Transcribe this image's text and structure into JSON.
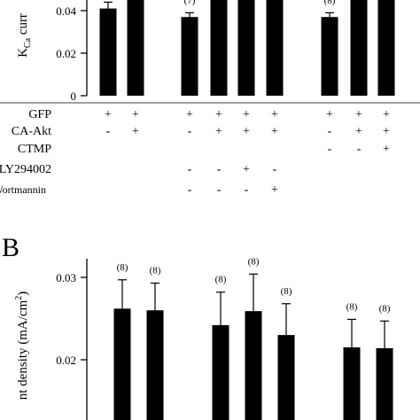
{
  "chart_data": [
    {
      "panel_label": "",
      "type": "bar",
      "ylabel": "K",
      "ylabel_sub": "Ca",
      "ylabel_rest": " curr",
      "ylim": [
        0,
        0.05
      ],
      "yticks": [
        0,
        0.02,
        0.04
      ],
      "ytick_labels": [
        "0",
        "0.02",
        "0.04"
      ],
      "groups": [
        {
          "values": [
            0.041,
            0.05
          ],
          "errors": [
            0.003,
            0.0
          ],
          "n_labels": [
            "",
            ""
          ]
        },
        {
          "values": [
            0.037,
            0.05,
            0.05,
            0.05
          ],
          "errors": [
            0.002,
            0.0,
            0.0,
            0.0
          ],
          "n_labels": [
            "(7)",
            "",
            "",
            ""
          ]
        },
        {
          "values": [
            0.037,
            0.05,
            0.05
          ],
          "errors": [
            0.002,
            0.0,
            0.0
          ],
          "n_labels": [
            "(8)",
            "",
            ""
          ]
        }
      ],
      "conditions": [
        {
          "name": "GFP",
          "marks": [
            [
              "+",
              "+"
            ],
            [
              "+",
              "+",
              "+",
              "+"
            ],
            [
              "+",
              "+",
              "+"
            ]
          ]
        },
        {
          "name": "CA-Akt",
          "marks": [
            [
              "-",
              "+"
            ],
            [
              "-",
              "+",
              "+",
              "+"
            ],
            [
              "-",
              "+",
              "+"
            ]
          ]
        },
        {
          "name": "CTMP",
          "marks": [
            [
              "",
              ""
            ],
            [
              "",
              "",
              "",
              ""
            ],
            [
              "-",
              "-",
              "+"
            ]
          ]
        },
        {
          "name": "LY294002",
          "marks": [
            [
              "",
              ""
            ],
            [
              "-",
              "-",
              "+",
              "-"
            ],
            [
              "",
              "",
              ""
            ]
          ]
        },
        {
          "name": "Wortmannin",
          "marks": [
            [
              "",
              ""
            ],
            [
              "-",
              "-",
              "-",
              "+"
            ],
            [
              "",
              "",
              ""
            ]
          ]
        }
      ]
    },
    {
      "panel_label": "B",
      "type": "bar",
      "ylabel": "nt density (mA/cm",
      "ylabel_sup": "2",
      "ylabel_end": ")",
      "ylim": [
        0.015,
        0.0325
      ],
      "yticks": [
        0.02,
        0.03
      ],
      "ytick_labels": [
        "0.02",
        "0.03"
      ],
      "groups": [
        {
          "values": [
            0.0262,
            0.026
          ],
          "errors": [
            0.0035,
            0.0033
          ],
          "n_labels": [
            "(8)",
            "(8)"
          ]
        },
        {
          "values": [
            0.0242,
            0.0259,
            0.023
          ],
          "errors": [
            0.004,
            0.0045,
            0.0038
          ],
          "n_labels": [
            "(8)",
            "(8)",
            "(8)"
          ]
        },
        {
          "values": [
            0.0215,
            0.0214
          ],
          "errors": [
            0.0034,
            0.0033
          ],
          "n_labels": [
            "(8)",
            "(8)"
          ]
        }
      ]
    }
  ]
}
